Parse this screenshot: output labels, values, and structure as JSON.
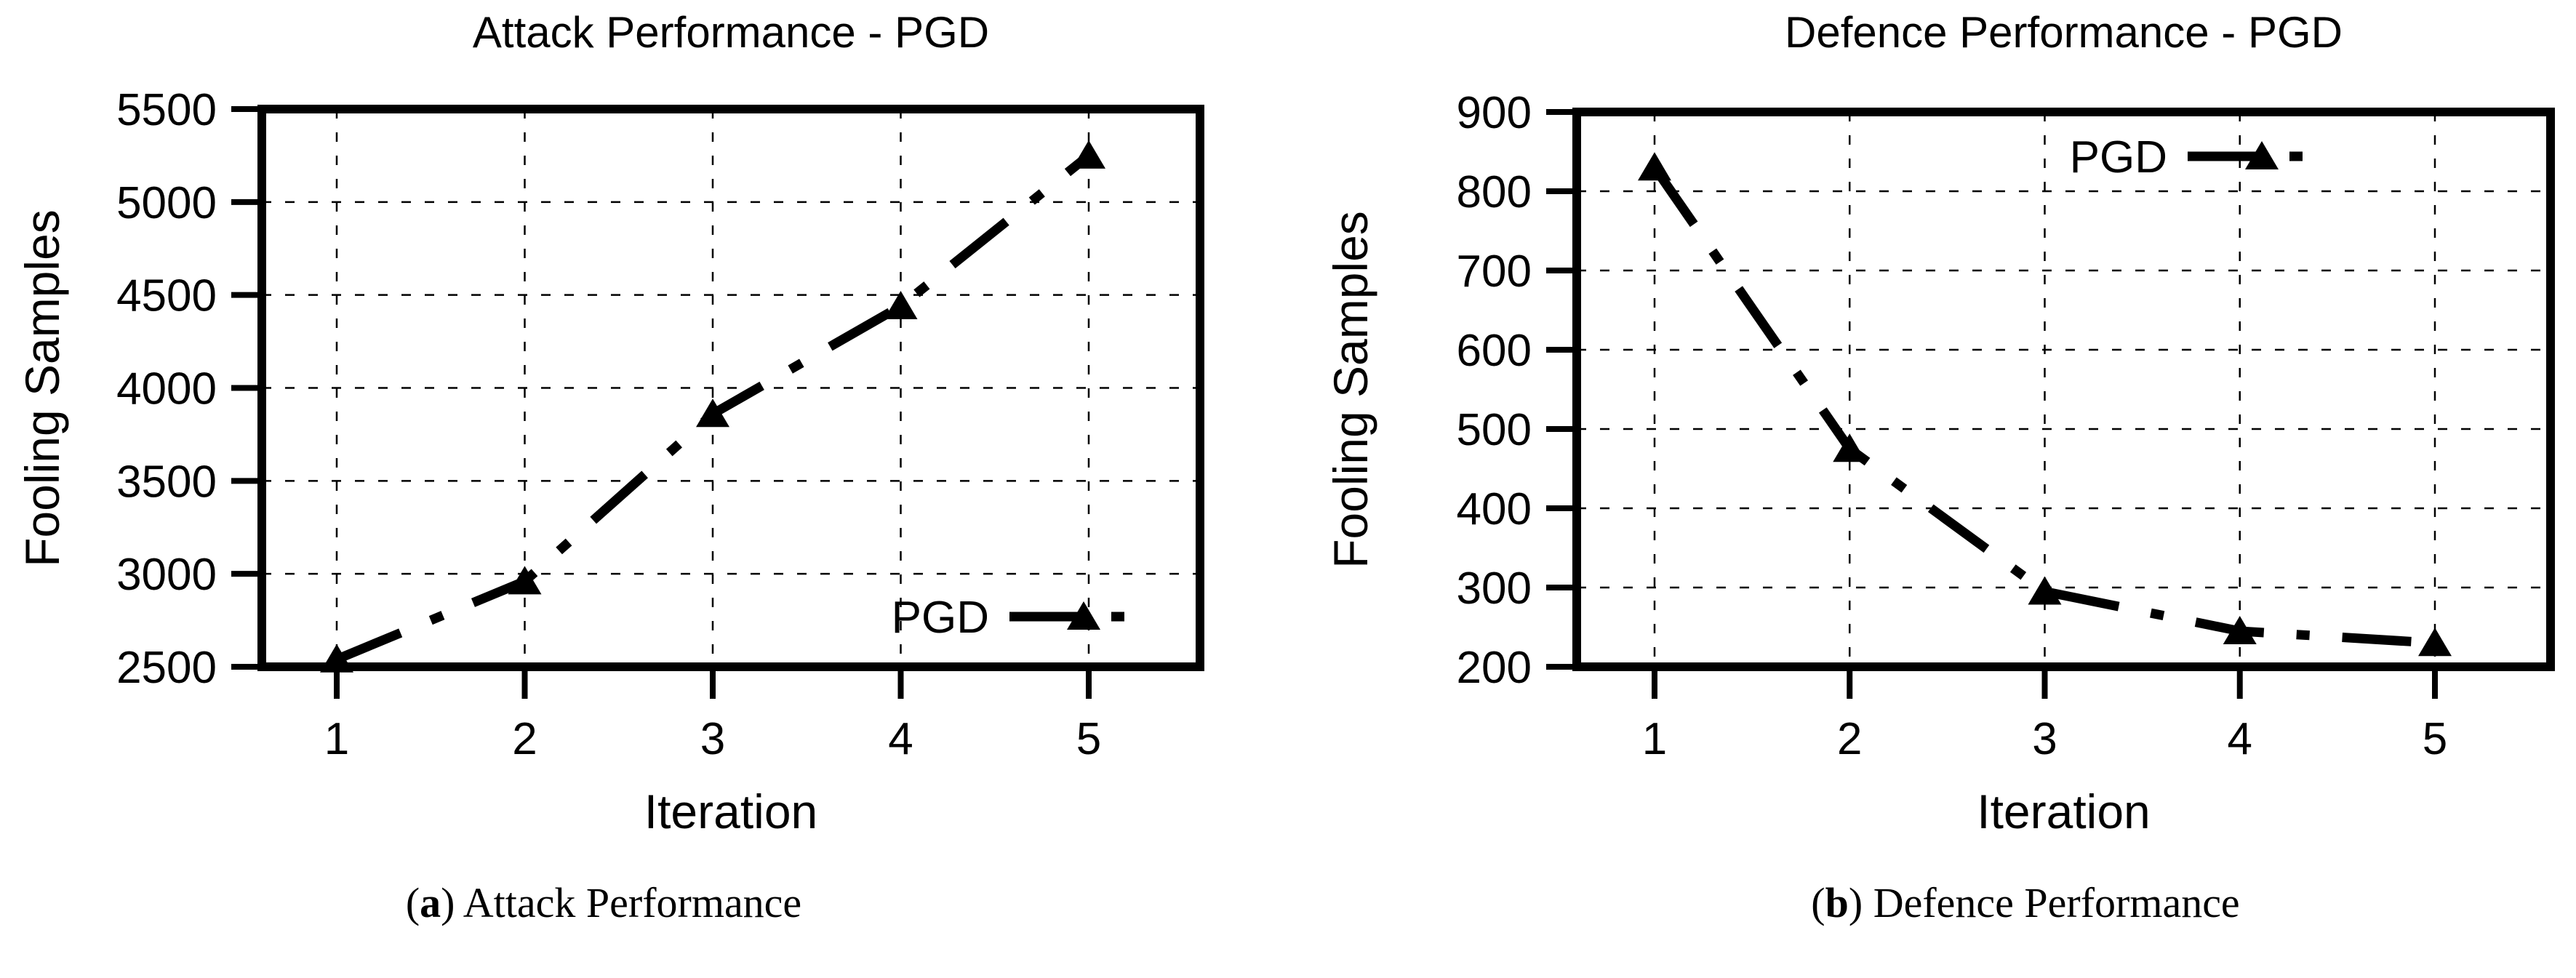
{
  "page": {
    "background_color": "#ffffff",
    "ink_color": "#000000"
  },
  "chart_data": [
    {
      "type": "line",
      "title": "Attack Performance - PGD",
      "xlabel": "Iteration",
      "ylabel": "Fooling Samples",
      "x": [
        1,
        2,
        3,
        4,
        5
      ],
      "xticks": [
        "1",
        "2",
        "3",
        "4",
        "5"
      ],
      "yticks": [
        2500,
        3000,
        3500,
        4000,
        4500,
        5000,
        5500
      ],
      "ylim": [
        2500,
        5500
      ],
      "grid": true,
      "legend_position": "inside-bottom-right",
      "series": [
        {
          "name": "PGD",
          "values": [
            2540,
            2960,
            3860,
            4440,
            5250
          ],
          "color": "#000000",
          "line_style": "dash-dot",
          "marker": "filled-triangle-up"
        }
      ],
      "caption": {
        "open": "(",
        "letter": "a",
        "close": ") ",
        "text": "Attack Performance"
      }
    },
    {
      "type": "line",
      "title": "Defence Performance - PGD",
      "xlabel": "Iteration",
      "ylabel": "Fooling Samples",
      "x": [
        1,
        2,
        3,
        4,
        5
      ],
      "xticks": [
        "1",
        "2",
        "3",
        "4",
        "5"
      ],
      "yticks": [
        200,
        300,
        400,
        500,
        600,
        700,
        800,
        900
      ],
      "ylim": [
        200,
        900
      ],
      "grid": true,
      "legend_position": "inside-top-right",
      "series": [
        {
          "name": "PGD",
          "values": [
            830,
            475,
            295,
            245,
            230
          ],
          "color": "#000000",
          "line_style": "dash-dot",
          "marker": "filled-triangle-up"
        }
      ],
      "caption": {
        "open": "(",
        "letter": "b",
        "close": ") ",
        "text": "Defence Performance"
      }
    }
  ]
}
